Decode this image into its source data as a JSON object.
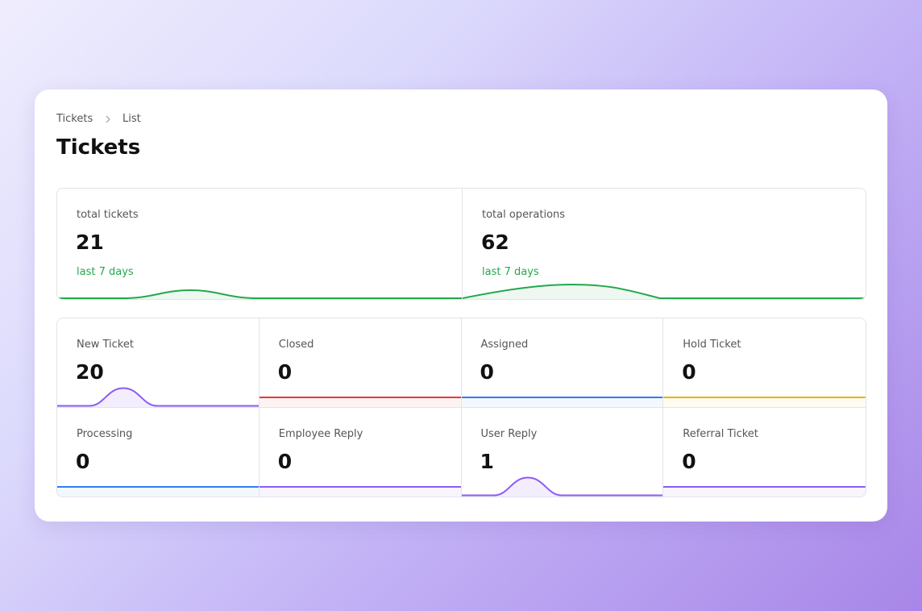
{
  "breadcrumb": [
    "Tickets",
    "List"
  ],
  "header": {
    "title": "Tickets"
  },
  "summary": [
    {
      "label": "total tickets",
      "value": 21,
      "period": "last 7 days"
    },
    {
      "label": "total operations",
      "value": 62,
      "period": "last 7 days"
    }
  ],
  "stats": [
    {
      "label": "New Ticket",
      "value": 20,
      "color": "#8b5cf6"
    },
    {
      "label": "Closed",
      "value": 0,
      "color": "#e53935"
    },
    {
      "label": "Assigned",
      "value": 0,
      "color": "#2f80ed"
    },
    {
      "label": "Hold Ticket",
      "value": 0,
      "color": "#eab308"
    },
    {
      "label": "Processing",
      "value": 0,
      "color": "#2f80ed"
    },
    {
      "label": "Employee Reply",
      "value": 0,
      "color": "#8b5cf6"
    },
    {
      "label": "User Reply",
      "value": 1,
      "color": "#8b5cf6"
    },
    {
      "label": "Referral Ticket",
      "value": 0,
      "color": "#8b5cf6"
    }
  ]
}
